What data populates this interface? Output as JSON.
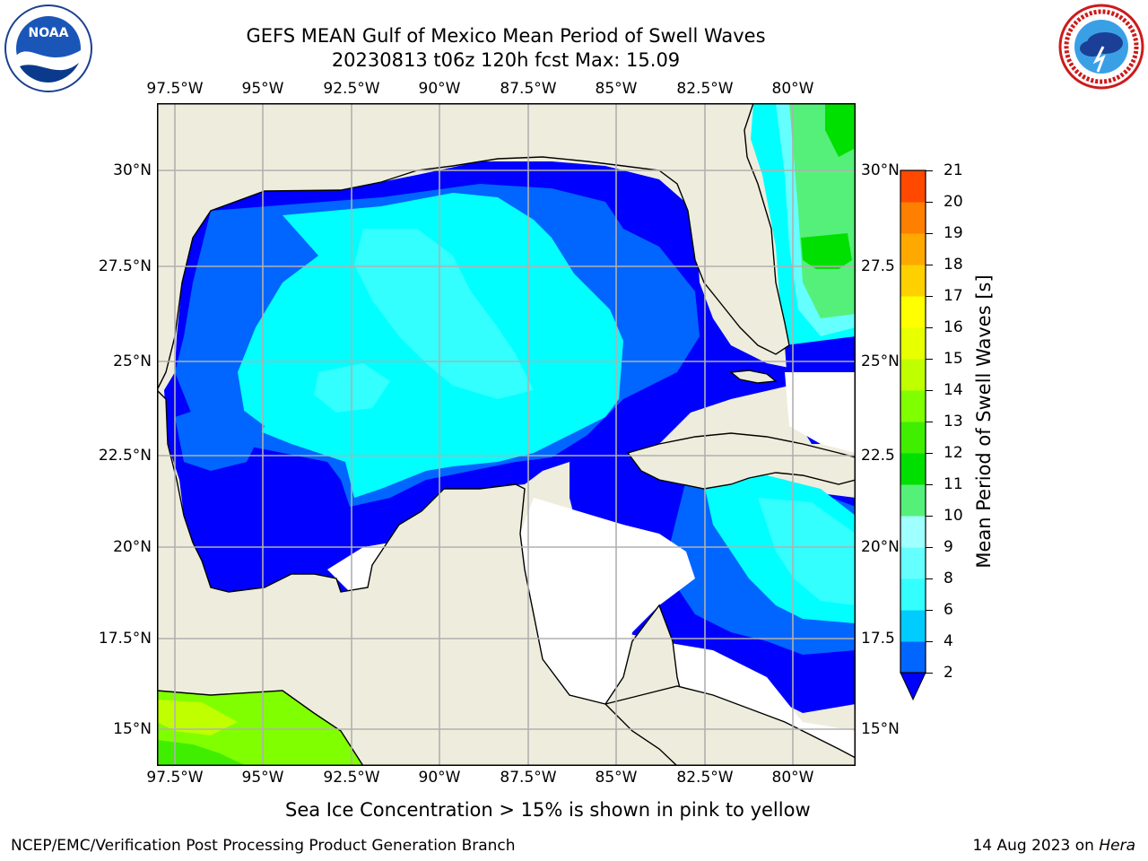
{
  "title": {
    "line1": "GEFS MEAN Gulf of Mexico Mean Period of Swell Waves",
    "line2": "20230813 t06z 120h fcst   Max: 15.09"
  },
  "map": {
    "lon_ticks": [
      "97.5°W",
      "95°W",
      "92.5°W",
      "90°W",
      "87.5°W",
      "85°W",
      "82.5°W",
      "80°W"
    ],
    "lat_ticks_left": [
      "30°N",
      "27.5°N",
      "25°N",
      "22.5°N",
      "20°N",
      "17.5°N",
      "15°N"
    ],
    "lat_ticks_right": [
      "30°N",
      "27.5",
      "25°N",
      "22.5",
      "20°N",
      "17.5",
      "15°N"
    ],
    "colors": {
      "land": "#eeeddd",
      "coast": "#000000",
      "grid": "#b0b0b0",
      "no_data": "#ffffff"
    }
  },
  "colorbar": {
    "label": "Mean Period of Swell Waves [s]",
    "ticks": [
      "2",
      "4",
      "6",
      "8",
      "9",
      "10",
      "11",
      "12",
      "13",
      "14",
      "15",
      "16",
      "17",
      "18",
      "19",
      "20",
      "21"
    ],
    "colors": [
      "#0066ff",
      "#00ccff",
      "#33ffff",
      "#66ffff",
      "#a0ffff",
      "#55f07a",
      "#00e000",
      "#40ee00",
      "#80ff00",
      "#c0ff00",
      "#e8ff00",
      "#ffff00",
      "#ffd000",
      "#ffa800",
      "#ff8000",
      "#ff4800",
      "#ff1800",
      "#ff0000"
    ],
    "under_color": "#0000ff"
  },
  "note": "Sea Ice Concentration > 15% is shown in pink to yellow",
  "footer": {
    "left": "NCEP/EMC/Verification Post Processing Product Generation Branch",
    "date": "14 Aug 2023 on ",
    "machine": "Hera"
  },
  "logos": {
    "noaa_text": "NOAA",
    "noaa_ring": "NATIONAL OCEANIC AND ATMOSPHERIC ADMINISTRATION · U.S. DEPARTMENT OF COMMERCE",
    "nws_ring": "NATIONAL WEATHER SERVICE"
  },
  "chart_data": {
    "type": "heatmap",
    "title": "GEFS MEAN Gulf of Mexico Mean Period of Swell Waves",
    "subtitle": "20230813 t06z 120h fcst   Max: 15.09",
    "variable": "Mean Period of Swell Waves [s]",
    "max": 15.09,
    "lon_range": [
      "98°W",
      "78.3°W"
    ],
    "lat_range": [
      "14°N",
      "31.9°N"
    ],
    "color_levels": [
      2,
      4,
      6,
      8,
      9,
      10,
      11,
      12,
      13,
      14,
      15,
      16,
      17,
      18,
      19,
      20,
      21
    ],
    "grid": true
  }
}
